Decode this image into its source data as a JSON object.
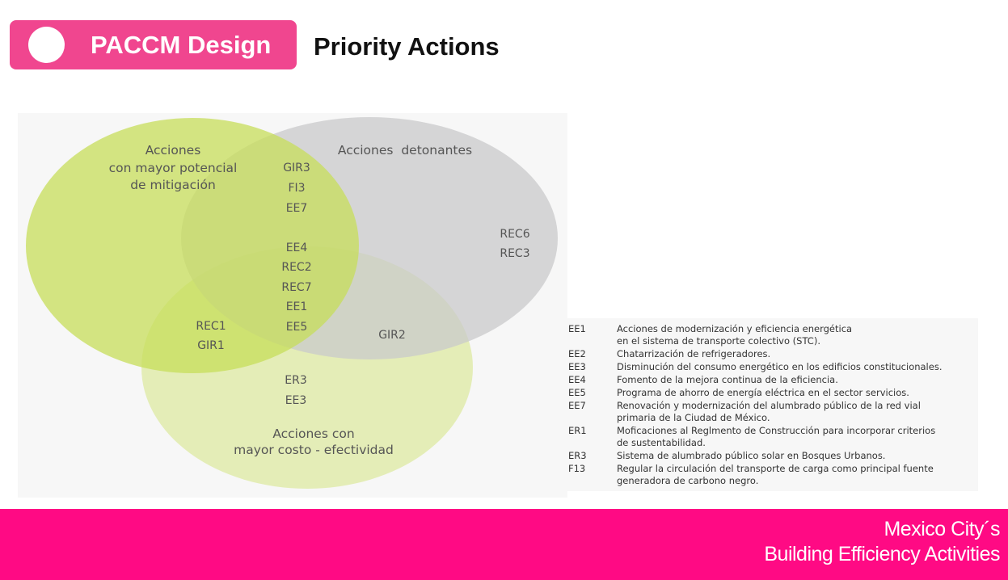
{
  "header": {
    "badge_label": "PACCM Design",
    "title": "Priority Actions"
  },
  "venn": {
    "circle_mitigation": {
      "label_lines": [
        "Acciones",
        "con mayor potencial",
        "de mitigación"
      ],
      "color": "#c7de5a"
    },
    "circle_detonantes": {
      "label_lines": [
        "Acciones  detonantes"
      ],
      "color": "#c9cacb"
    },
    "circle_costo": {
      "label_lines": [
        "Acciones con",
        "mayor costo - efectividad"
      ],
      "color": "#dde9a2"
    },
    "regions": {
      "mitigation_detonantes": [
        "GIR3",
        "FI3",
        "EE7"
      ],
      "all_three": [
        "EE4",
        "REC2",
        "REC7",
        "EE1",
        "EE5"
      ],
      "detonantes_only": [
        "REC6",
        "REC3"
      ],
      "mitigation_costo": [
        "REC1",
        "GIR1"
      ],
      "detonantes_costo": [
        "GIR2"
      ],
      "costo_only": [
        "ER3",
        "EE3"
      ]
    }
  },
  "legend": [
    {
      "code": "EE1",
      "lines": [
        "Acciones de modernización y eficiencia energética",
        "en el sistema de transporte colectivo (STC)."
      ]
    },
    {
      "code": "EE2",
      "lines": [
        "Chatarrización de refrigeradores."
      ]
    },
    {
      "code": "EE3",
      "lines": [
        "Disminución del consumo energético en los edificios constitucionales."
      ]
    },
    {
      "code": "EE4",
      "lines": [
        "Fomento de la mejora continua de la eficiencia."
      ]
    },
    {
      "code": "EE5",
      "lines": [
        "Programa de ahorro de energía eléctrica en el sector servicios."
      ]
    },
    {
      "code": "EE7",
      "lines": [
        "Renovación y modernización del alumbrado público de la red vial",
        "primaria de la Ciudad de México."
      ]
    },
    {
      "code": "ER1",
      "lines": [
        "Moficaciones al Reglmento de Construcción para incorporar criterios",
        "de sustentabilidad."
      ]
    },
    {
      "code": "ER3",
      "lines": [
        "Sistema de alumbrado público solar en Bosques Urbanos."
      ]
    },
    {
      "code": "F13",
      "lines": [
        "Regular la circulación del transporte de carga como principal fuente",
        "generadora de carbono negro."
      ]
    }
  ],
  "footer": {
    "line1": "Mexico City´s",
    "line2": "Building Efficiency Activities"
  }
}
